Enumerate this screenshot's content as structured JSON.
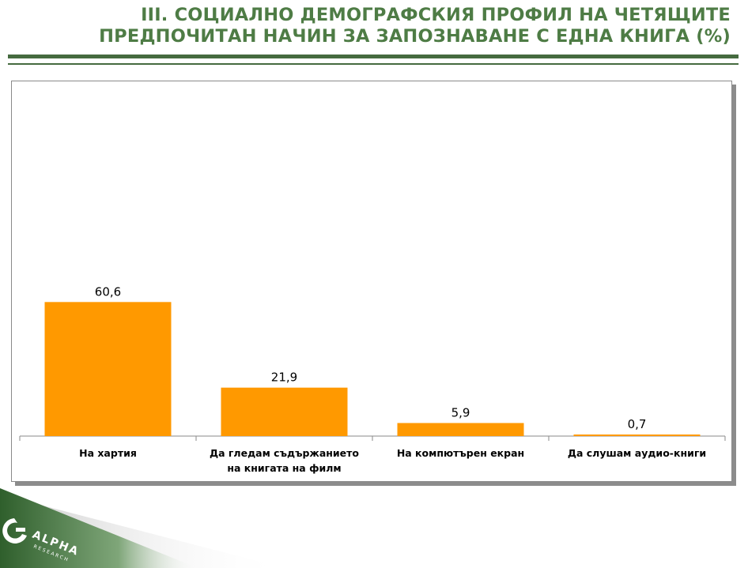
{
  "header": {
    "title_line1": "III. СОЦИАЛНО ДЕМОГРАФСКИЯ ПРОФИЛ НА ЧЕТЯЩИТЕ",
    "title_line2": "ПРЕДПОЧИТАН НАЧИН ЗА ЗАПОЗНАВАНЕ С ЕДНА КНИГА (%)"
  },
  "logo": {
    "text": "ALPHA",
    "subtext": "RESEARCH"
  },
  "colors": {
    "bar": "#ff9900",
    "title": "#4e7c45",
    "rule": "#456b3f"
  },
  "chart_data": {
    "type": "bar",
    "categories": [
      [
        "На хартия"
      ],
      [
        "Да гледам съдържанието",
        "на книгата на филм"
      ],
      [
        "На компютърен екран"
      ],
      [
        "Да слушам аудио-книги"
      ]
    ],
    "values": [
      60.6,
      21.9,
      5.9,
      0.7
    ],
    "value_labels": [
      "60,6",
      "21,9",
      "5,9",
      "0,7"
    ],
    "ylim": [
      0,
      100
    ],
    "grid": false,
    "legend": "none"
  }
}
